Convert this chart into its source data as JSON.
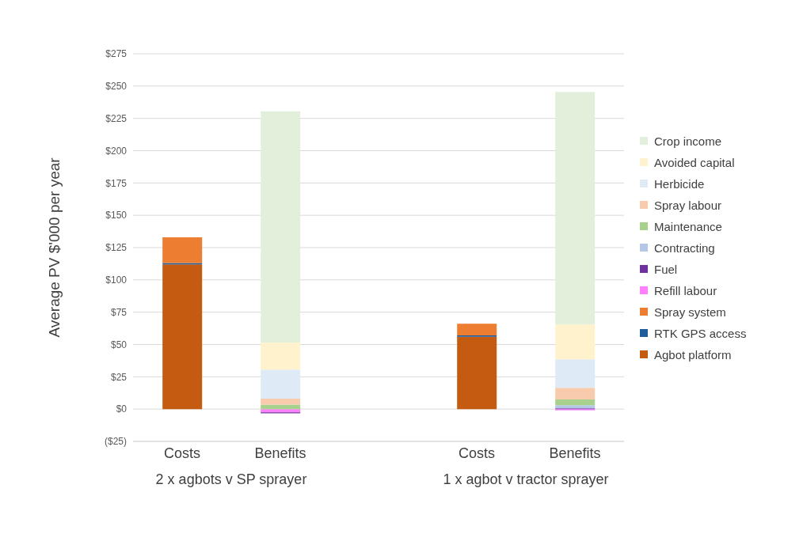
{
  "chart_data": {
    "type": "bar",
    "stacked": true,
    "ylabel": "Average PV $'000 per year",
    "categories": [
      "Costs",
      "Benefits",
      null,
      "Costs",
      "Benefits"
    ],
    "annotations": [
      "2 x agbots v SP sprayer",
      "1 x agbot v tractor sprayer"
    ],
    "series": [
      {
        "name": "Agbot platform",
        "color": "#c55a11",
        "values": [
          112,
          null,
          null,
          56,
          null
        ]
      },
      {
        "name": "RTK GPS access",
        "color": "#1f5c99",
        "values": [
          1,
          null,
          null,
          1,
          null
        ]
      },
      {
        "name": "Spray system",
        "color": "#ed7d31",
        "values": [
          20,
          null,
          null,
          9,
          null
        ]
      },
      {
        "name": "Refill labour",
        "color": "#ff80ff",
        "values": [
          null,
          -2.5,
          null,
          null,
          -1
        ]
      },
      {
        "name": "Fuel",
        "color": "#7030a0",
        "values": [
          null,
          -0.8,
          null,
          null,
          0.5
        ]
      },
      {
        "name": "Contracting",
        "color": "#b4c7e7",
        "values": [
          null,
          null,
          null,
          null,
          2.5
        ]
      },
      {
        "name": "Maintenance",
        "color": "#a9d18e",
        "values": [
          null,
          3.5,
          null,
          null,
          4.5
        ]
      },
      {
        "name": "Spray labour",
        "color": "#f8cbad",
        "values": [
          null,
          4.5,
          null,
          null,
          9
        ]
      },
      {
        "name": "Herbicide",
        "color": "#deebf7",
        "values": [
          null,
          22.5,
          null,
          null,
          22
        ]
      },
      {
        "name": "Avoided capital",
        "color": "#fff2cc",
        "values": [
          null,
          21,
          null,
          null,
          27
        ]
      },
      {
        "name": "Crop income",
        "color": "#e2efda",
        "values": [
          null,
          179,
          null,
          null,
          180
        ]
      }
    ],
    "ylim": [
      -25,
      275
    ],
    "yticks": [
      {
        "value": -25,
        "label": "($25)"
      },
      {
        "value": 0,
        "label": "$0"
      },
      {
        "value": 25,
        "label": "$25"
      },
      {
        "value": 50,
        "label": "$50"
      },
      {
        "value": 75,
        "label": "$75"
      },
      {
        "value": 100,
        "label": "$100"
      },
      {
        "value": 125,
        "label": "$125"
      },
      {
        "value": 150,
        "label": "$150"
      },
      {
        "value": 175,
        "label": "$175"
      },
      {
        "value": 200,
        "label": "$200"
      },
      {
        "value": 225,
        "label": "$225"
      },
      {
        "value": 250,
        "label": "$250"
      },
      {
        "value": 275,
        "label": "$275"
      }
    ],
    "grid": "y",
    "legend": "right"
  }
}
